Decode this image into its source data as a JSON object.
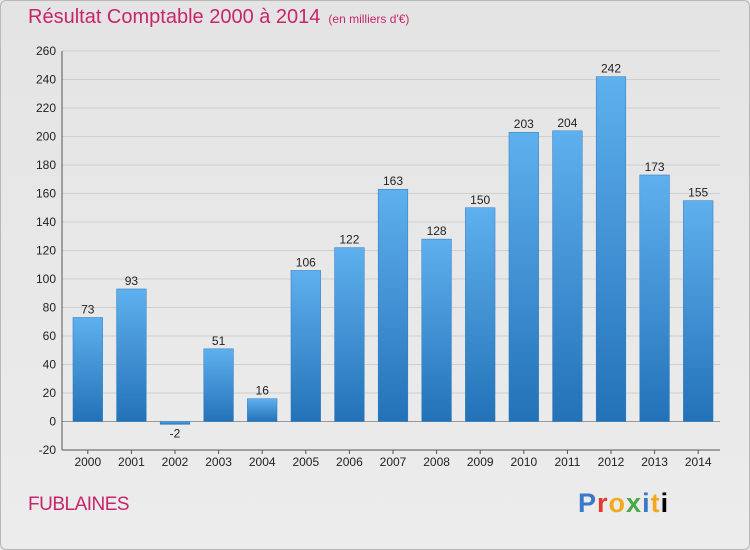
{
  "chart_data": {
    "type": "bar",
    "title": "Résultat Comptable 2000 à 2014",
    "subtitle": "(en milliers d'€)",
    "categories": [
      "2000",
      "2001",
      "2002",
      "2003",
      "2004",
      "2005",
      "2006",
      "2007",
      "2008",
      "2009",
      "2010",
      "2011",
      "2012",
      "2013",
      "2014"
    ],
    "values": [
      73,
      93,
      -2,
      51,
      16,
      106,
      122,
      163,
      128,
      150,
      203,
      204,
      242,
      173,
      155
    ],
    "ylim": [
      -20,
      260
    ],
    "yticks": [
      -20,
      0,
      20,
      40,
      60,
      80,
      100,
      120,
      140,
      160,
      180,
      200,
      220,
      240,
      260
    ],
    "grid": true,
    "bar_color": "#3a8fd6"
  },
  "location": "FUBLAINES",
  "brand": {
    "letters": [
      "P",
      "r",
      "o",
      "x",
      "i",
      "t",
      "i"
    ]
  }
}
